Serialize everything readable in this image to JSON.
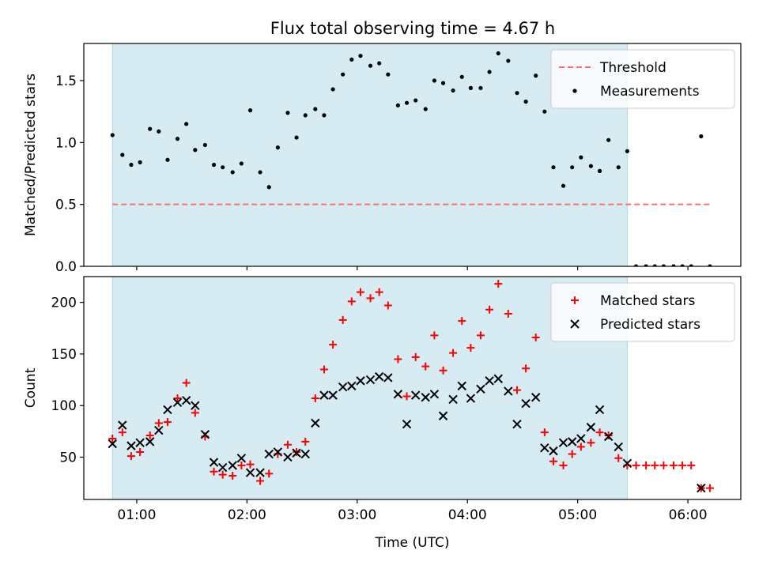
{
  "title": "Flux total observing time = 4.67 h",
  "colors": {
    "shade": "#add8e6",
    "threshold": "#ff6f6f",
    "measurements": "#000000",
    "matched": "#ff0000",
    "predicted": "#000000"
  },
  "chart_data": [
    {
      "type": "scatter",
      "ylabel": "Matched/Predicted stars",
      "xlabel": "",
      "x_unit": "hours UTC",
      "xlim": [
        0.52,
        6.48
      ],
      "ylim": [
        0,
        1.8
      ],
      "yticks": [
        0.0,
        0.5,
        1.0,
        1.5
      ],
      "ytick_labels": [
        "0.0",
        "0.5",
        "1.0",
        "1.5"
      ],
      "shaded_x_range": [
        0.78,
        5.45
      ],
      "legend_position": "upper-right",
      "grid": false,
      "threshold": {
        "name": "Threshold",
        "value": 0.5,
        "x_range": [
          0.78,
          6.22
        ]
      },
      "series": [
        {
          "name": "Measurements",
          "marker": "dot",
          "points": [
            [
              0.78,
              1.06
            ],
            [
              0.87,
              0.9
            ],
            [
              0.95,
              0.82
            ],
            [
              1.03,
              0.84
            ],
            [
              1.12,
              1.11
            ],
            [
              1.2,
              1.09
            ],
            [
              1.28,
              0.86
            ],
            [
              1.37,
              1.03
            ],
            [
              1.45,
              1.15
            ],
            [
              1.53,
              0.94
            ],
            [
              1.62,
              0.98
            ],
            [
              1.7,
              0.82
            ],
            [
              1.78,
              0.8
            ],
            [
              1.87,
              0.76
            ],
            [
              1.95,
              0.83
            ],
            [
              2.03,
              1.26
            ],
            [
              2.12,
              0.76
            ],
            [
              2.2,
              0.64
            ],
            [
              2.28,
              0.96
            ],
            [
              2.37,
              1.24
            ],
            [
              2.45,
              1.04
            ],
            [
              2.53,
              1.22
            ],
            [
              2.62,
              1.27
            ],
            [
              2.7,
              1.22
            ],
            [
              2.78,
              1.43
            ],
            [
              2.87,
              1.55
            ],
            [
              2.95,
              1.67
            ],
            [
              3.03,
              1.7
            ],
            [
              3.12,
              1.62
            ],
            [
              3.2,
              1.64
            ],
            [
              3.28,
              1.55
            ],
            [
              3.37,
              1.3
            ],
            [
              3.45,
              1.32
            ],
            [
              3.53,
              1.34
            ],
            [
              3.62,
              1.27
            ],
            [
              3.7,
              1.5
            ],
            [
              3.78,
              1.48
            ],
            [
              3.87,
              1.42
            ],
            [
              3.95,
              1.53
            ],
            [
              4.03,
              1.44
            ],
            [
              4.12,
              1.44
            ],
            [
              4.2,
              1.57
            ],
            [
              4.28,
              1.72
            ],
            [
              4.37,
              1.66
            ],
            [
              4.45,
              1.4
            ],
            [
              4.53,
              1.33
            ],
            [
              4.62,
              1.54
            ],
            [
              4.7,
              1.25
            ],
            [
              4.78,
              0.8
            ],
            [
              4.87,
              0.65
            ],
            [
              4.95,
              0.8
            ],
            [
              5.03,
              0.88
            ],
            [
              5.12,
              0.81
            ],
            [
              5.2,
              0.77
            ],
            [
              5.28,
              1.02
            ],
            [
              5.37,
              0.8
            ],
            [
              5.45,
              0.93
            ],
            [
              5.53,
              0.0
            ],
            [
              5.62,
              0.0
            ],
            [
              5.7,
              0.0
            ],
            [
              5.78,
              0.0
            ],
            [
              5.87,
              0.0
            ],
            [
              5.95,
              0.0
            ],
            [
              6.03,
              0.0
            ],
            [
              6.12,
              1.05
            ],
            [
              6.2,
              0.0
            ]
          ]
        }
      ]
    },
    {
      "type": "scatter",
      "ylabel": "Count",
      "xlabel": "Time (UTC)",
      "x_unit": "hours UTC",
      "xlim": [
        0.52,
        6.48
      ],
      "ylim": [
        9,
        225
      ],
      "yticks": [
        50,
        100,
        150,
        200
      ],
      "ytick_labels": [
        "50",
        "100",
        "150",
        "200"
      ],
      "xticks": [
        1,
        2,
        3,
        4,
        5,
        6
      ],
      "xtick_labels": [
        "01:00",
        "02:00",
        "03:00",
        "04:00",
        "05:00",
        "06:00"
      ],
      "shaded_x_range": [
        0.78,
        5.45
      ],
      "legend_position": "upper-right",
      "grid": false,
      "series": [
        {
          "name": "Matched stars",
          "marker": "plus",
          "points": [
            [
              0.78,
              68
            ],
            [
              0.87,
              74
            ],
            [
              0.95,
              51
            ],
            [
              1.03,
              55
            ],
            [
              1.12,
              71
            ],
            [
              1.2,
              83
            ],
            [
              1.28,
              84
            ],
            [
              1.37,
              107
            ],
            [
              1.45,
              122
            ],
            [
              1.53,
              93
            ],
            [
              1.62,
              70
            ],
            [
              1.7,
              36
            ],
            [
              1.78,
              33
            ],
            [
              1.87,
              32
            ],
            [
              1.95,
              42
            ],
            [
              2.03,
              43
            ],
            [
              2.12,
              27
            ],
            [
              2.2,
              34
            ],
            [
              2.28,
              53
            ],
            [
              2.37,
              62
            ],
            [
              2.45,
              55
            ],
            [
              2.53,
              65
            ],
            [
              2.62,
              107
            ],
            [
              2.7,
              135
            ],
            [
              2.78,
              159
            ],
            [
              2.87,
              183
            ],
            [
              2.95,
              201
            ],
            [
              3.03,
              210
            ],
            [
              3.12,
              204
            ],
            [
              3.2,
              210
            ],
            [
              3.28,
              197
            ],
            [
              3.37,
              145
            ],
            [
              3.45,
              109
            ],
            [
              3.53,
              147
            ],
            [
              3.62,
              138
            ],
            [
              3.7,
              168
            ],
            [
              3.78,
              134
            ],
            [
              3.87,
              151
            ],
            [
              3.95,
              182
            ],
            [
              4.03,
              156
            ],
            [
              4.12,
              168
            ],
            [
              4.2,
              193
            ],
            [
              4.28,
              218
            ],
            [
              4.37,
              189
            ],
            [
              4.45,
              115
            ],
            [
              4.53,
              136
            ],
            [
              4.62,
              166
            ],
            [
              4.7,
              74
            ],
            [
              4.78,
              46
            ],
            [
              4.87,
              42
            ],
            [
              4.95,
              53
            ],
            [
              5.03,
              60
            ],
            [
              5.12,
              64
            ],
            [
              5.2,
              74
            ],
            [
              5.28,
              71
            ],
            [
              5.37,
              49
            ],
            [
              5.45,
              42
            ],
            [
              5.53,
              42
            ],
            [
              5.62,
              42
            ],
            [
              5.7,
              42
            ],
            [
              5.78,
              42
            ],
            [
              5.87,
              42
            ],
            [
              5.95,
              42
            ],
            [
              6.03,
              42
            ],
            [
              6.12,
              20
            ],
            [
              6.2,
              20
            ]
          ]
        },
        {
          "name": "Predicted stars",
          "marker": "x",
          "points": [
            [
              0.78,
              63
            ],
            [
              0.87,
              81
            ],
            [
              0.95,
              61
            ],
            [
              1.03,
              64
            ],
            [
              1.12,
              65
            ],
            [
              1.2,
              76
            ],
            [
              1.28,
              96
            ],
            [
              1.37,
              103
            ],
            [
              1.45,
              105
            ],
            [
              1.53,
              100
            ],
            [
              1.62,
              72
            ],
            [
              1.7,
              45
            ],
            [
              1.78,
              40
            ],
            [
              1.87,
              42
            ],
            [
              1.95,
              49
            ],
            [
              2.03,
              35
            ],
            [
              2.12,
              35
            ],
            [
              2.2,
              53
            ],
            [
              2.28,
              55
            ],
            [
              2.37,
              50
            ],
            [
              2.45,
              54
            ],
            [
              2.53,
              53
            ],
            [
              2.62,
              83
            ],
            [
              2.7,
              110
            ],
            [
              2.78,
              110
            ],
            [
              2.87,
              118
            ],
            [
              2.95,
              119
            ],
            [
              3.03,
              124
            ],
            [
              3.12,
              125
            ],
            [
              3.2,
              128
            ],
            [
              3.28,
              127
            ],
            [
              3.37,
              111
            ],
            [
              3.45,
              82
            ],
            [
              3.53,
              110
            ],
            [
              3.62,
              108
            ],
            [
              3.7,
              111
            ],
            [
              3.78,
              90
            ],
            [
              3.87,
              106
            ],
            [
              3.95,
              119
            ],
            [
              4.03,
              107
            ],
            [
              4.12,
              116
            ],
            [
              4.2,
              124
            ],
            [
              4.28,
              126
            ],
            [
              4.37,
              114
            ],
            [
              4.45,
              82
            ],
            [
              4.53,
              102
            ],
            [
              4.62,
              108
            ],
            [
              4.7,
              59
            ],
            [
              4.78,
              56
            ],
            [
              4.87,
              64
            ],
            [
              4.95,
              65
            ],
            [
              5.03,
              68
            ],
            [
              5.12,
              79
            ],
            [
              5.2,
              96
            ],
            [
              5.28,
              70
            ],
            [
              5.37,
              60
            ],
            [
              5.45,
              44
            ],
            [
              6.12,
              20
            ]
          ]
        }
      ]
    }
  ]
}
